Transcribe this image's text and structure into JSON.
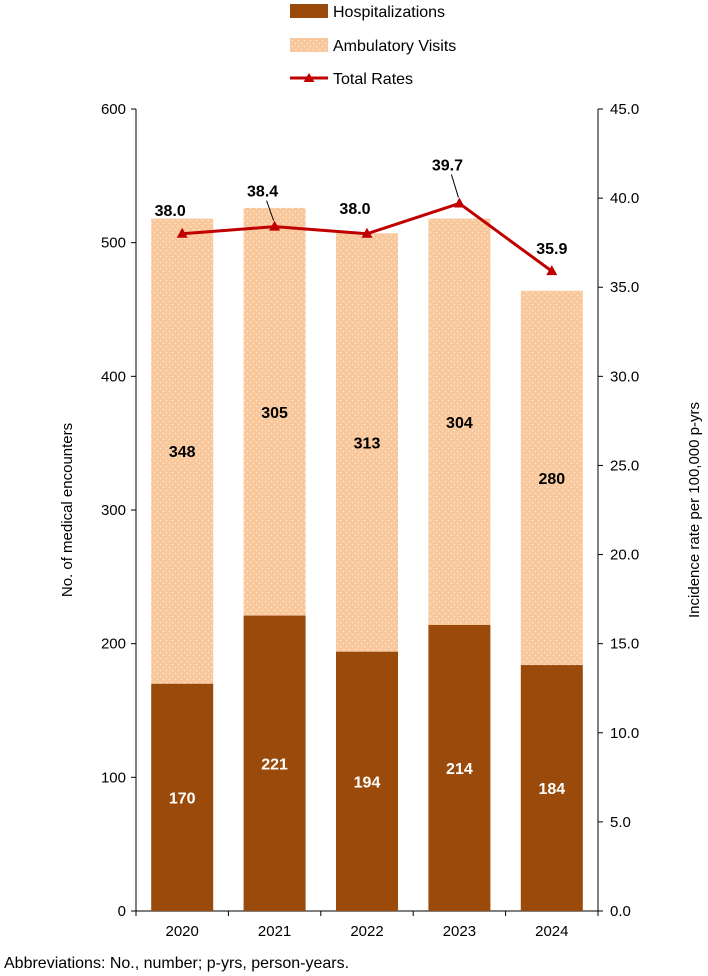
{
  "chart_data": {
    "type": "bar+line",
    "categories": [
      "2020",
      "2021",
      "2022",
      "2023",
      "2024"
    ],
    "series": [
      {
        "name": "Hospitalizations",
        "kind": "stacked-bar",
        "axis": "left",
        "color": "#9A4A0A",
        "values": [
          170,
          221,
          194,
          214,
          184
        ]
      },
      {
        "name": "Ambulatory Visits",
        "kind": "stacked-bar",
        "axis": "left",
        "color": "#F9C79C",
        "values": [
          348,
          305,
          313,
          304,
          280
        ]
      },
      {
        "name": "Total Rates",
        "kind": "line",
        "axis": "right",
        "color": "#C00000",
        "values": [
          38.0,
          38.4,
          38.0,
          39.7,
          35.9
        ]
      }
    ],
    "bar_labels": {
      "Hospitalizations": [
        "170",
        "221",
        "194",
        "214",
        "184"
      ],
      "Ambulatory Visits": [
        "348",
        "305",
        "313",
        "304",
        "280"
      ]
    },
    "line_labels": [
      "38.0",
      "38.4",
      "38.0",
      "39.7",
      "35.9"
    ],
    "ylabel": "No. of medical encounters",
    "y2label": "Incidence rate per 100,000 p-yrs",
    "ylim": [
      0,
      600
    ],
    "y2lim": [
      0,
      45
    ],
    "yticks": [
      "0",
      "100",
      "200",
      "300",
      "400",
      "500",
      "600"
    ],
    "y2ticks": [
      "0.0",
      "5.0",
      "10.0",
      "15.0",
      "20.0",
      "25.0",
      "30.0",
      "35.0",
      "40.0",
      "45.0"
    ],
    "legend": [
      "Hospitalizations",
      "Ambulatory Visits",
      "Total Rates"
    ],
    "legend_position": "top-center"
  },
  "footnote": "Abbreviations: No., number; p-yrs, person-years."
}
